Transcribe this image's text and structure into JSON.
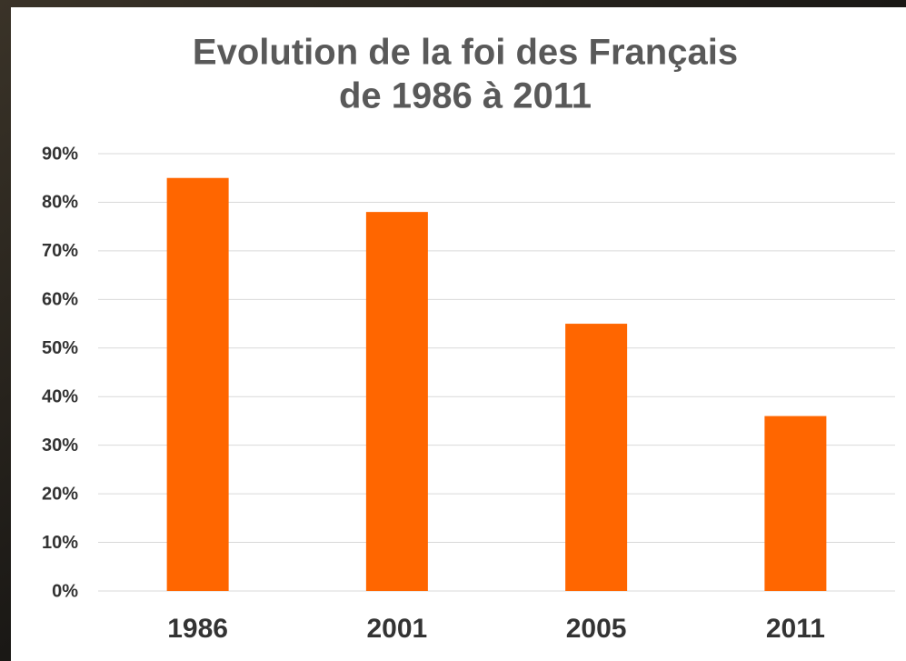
{
  "chart_data": {
    "type": "bar",
    "title": [
      "Evolution de la foi des Français",
      "de 1986 à 2011"
    ],
    "categories": [
      "1986",
      "2001",
      "2005",
      "2011"
    ],
    "values": [
      85,
      78,
      55,
      36
    ],
    "color": "#ff6600",
    "ylim": [
      0,
      90
    ],
    "yticks": [
      {
        "value": 0,
        "label": "0%"
      },
      {
        "value": 10,
        "label": "10%"
      },
      {
        "value": 20,
        "label": "20%"
      },
      {
        "value": 30,
        "label": "30%"
      },
      {
        "value": 40,
        "label": "40%"
      },
      {
        "value": 50,
        "label": "50%"
      },
      {
        "value": 60,
        "label": "60%"
      },
      {
        "value": 70,
        "label": "70%"
      },
      {
        "value": 80,
        "label": "80%"
      },
      {
        "value": 90,
        "label": "90%"
      }
    ],
    "grid": true
  }
}
